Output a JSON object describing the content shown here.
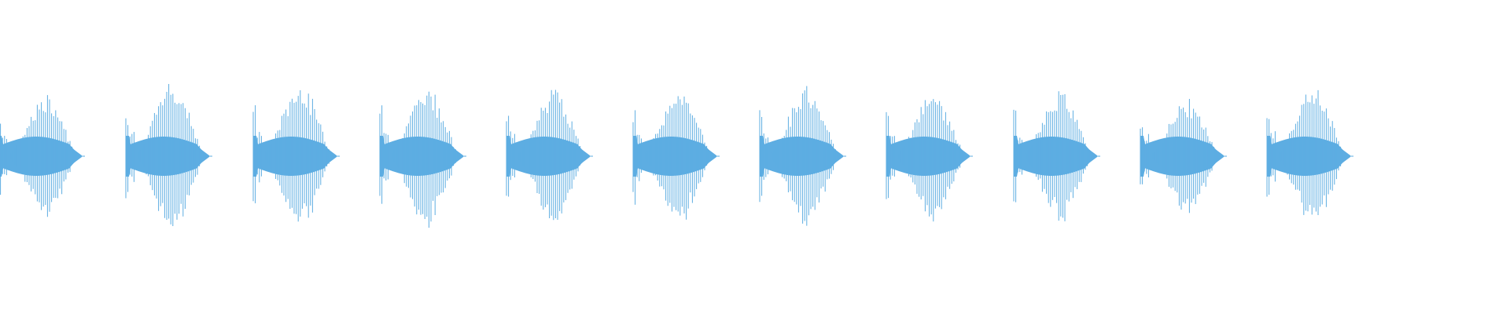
{
  "waveform": {
    "color": "#5dade2",
    "background": "#ffffff",
    "burst_count": 11
  }
}
